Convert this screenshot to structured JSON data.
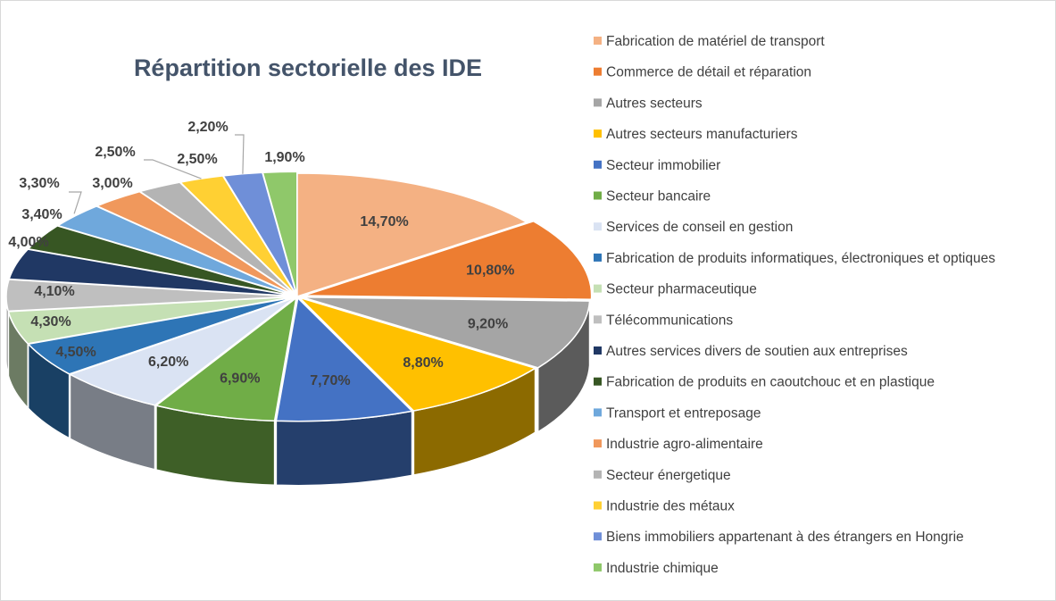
{
  "chart_data": {
    "type": "pie",
    "title": "Répartition sectorielle des IDE",
    "legend_position": "right",
    "style": "3d-exploded-pie",
    "slices": [
      {
        "label": "Fabrication de matériel de transport",
        "value": 14.7,
        "display": "14,70%",
        "color": "#f4b183"
      },
      {
        "label": "Commerce de détail et réparation",
        "value": 10.8,
        "display": "10,80%",
        "color": "#ed7d31"
      },
      {
        "label": "Autres secteurs",
        "value": 9.2,
        "display": "9,20%",
        "color": "#a5a5a5"
      },
      {
        "label": "Autres secteurs manufacturiers",
        "value": 8.8,
        "display": "8,80%",
        "color": "#ffc000"
      },
      {
        "label": "Secteur immobilier",
        "value": 7.7,
        "display": "7,70%",
        "color": "#4472c4"
      },
      {
        "label": "Secteur bancaire",
        "value": 6.9,
        "display": "6,90%",
        "color": "#70ad47"
      },
      {
        "label": "Services de conseil en gestion",
        "value": 6.2,
        "display": "6,20%",
        "color": "#dae3f3"
      },
      {
        "label": "Fabrication de produits informatiques, électroniques et optiques",
        "value": 4.5,
        "display": "4,50%",
        "color": "#2e75b6"
      },
      {
        "label": "Secteur pharmaceutique",
        "value": 4.3,
        "display": "4,30%",
        "color": "#c5e0b4"
      },
      {
        "label": "Télécommunications",
        "value": 4.1,
        "display": "4,10%",
        "color": "#bfbfbf"
      },
      {
        "label": "Autres services divers de soutien aux entreprises",
        "value": 4.0,
        "display": "4,00%",
        "color": "#203864"
      },
      {
        "label": "Fabrication de produits en caoutchouc et en plastique",
        "value": 3.4,
        "display": "3,40%",
        "color": "#375623"
      },
      {
        "label": "Transport et entreposage",
        "value": 3.3,
        "display": "3,30%",
        "color": "#6fa8dc"
      },
      {
        "label": "Industrie agro-alimentaire",
        "value": 3.0,
        "display": "3,00%",
        "color": "#f0985c"
      },
      {
        "label": "Secteur énergetique",
        "value": 2.5,
        "display": "2,50%",
        "color": "#b4b4b4"
      },
      {
        "label": "Industrie des métaux",
        "value": 2.5,
        "display": "2,50%",
        "color": "#ffd033"
      },
      {
        "label": "Biens immobiliers appartenant à des étrangers en Hongrie",
        "value": 2.2,
        "display": "2,20%",
        "color": "#6f8fd8"
      },
      {
        "label": "Industrie chimique",
        "value": 1.9,
        "display": "1,90%",
        "color": "#8fc86a"
      }
    ]
  }
}
